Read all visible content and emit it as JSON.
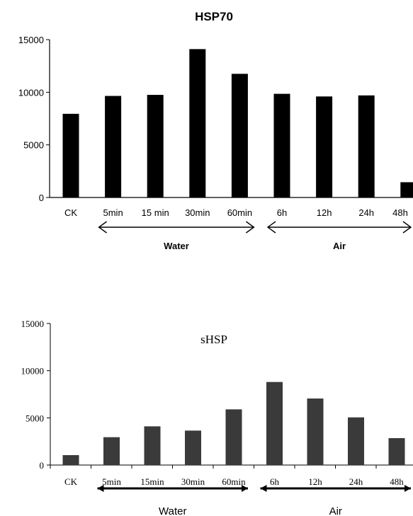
{
  "chart_data": [
    {
      "type": "bar",
      "title": "HSP70",
      "categories": [
        "CK",
        "5min",
        "15 min",
        "30min",
        "60min",
        "6h",
        "12h",
        "24h",
        "48h"
      ],
      "values": [
        7950,
        9650,
        9750,
        14100,
        11750,
        9850,
        9600,
        9700,
        1450
      ],
      "ylim": [
        0,
        15000
      ],
      "yticks": [
        "0",
        "5000",
        "10000",
        "15000"
      ],
      "grid": false,
      "groups": [
        {
          "label": "Water",
          "from": 1,
          "to": 4
        },
        {
          "label": "Air",
          "from": 5,
          "to": 8
        }
      ],
      "colors": {
        "bar": "#000000",
        "axis": "#000000"
      }
    },
    {
      "type": "bar",
      "title": "sHSP",
      "categories": [
        "CK",
        "5min",
        "15min",
        "30min",
        "60min",
        "6h",
        "12h",
        "24h",
        "48h"
      ],
      "values": [
        1050,
        2950,
        4100,
        3650,
        5900,
        8800,
        7050,
        5050,
        2850
      ],
      "ylim": [
        0,
        15000
      ],
      "yticks": [
        "0",
        "5000",
        "10000",
        "15000"
      ],
      "grid": false,
      "groups": [
        {
          "label": "Water",
          "from": 1,
          "to": 4
        },
        {
          "label": "Air",
          "from": 5,
          "to": 8
        }
      ],
      "colors": {
        "bar": "#3a3a3a",
        "axis": "#000000"
      }
    }
  ]
}
